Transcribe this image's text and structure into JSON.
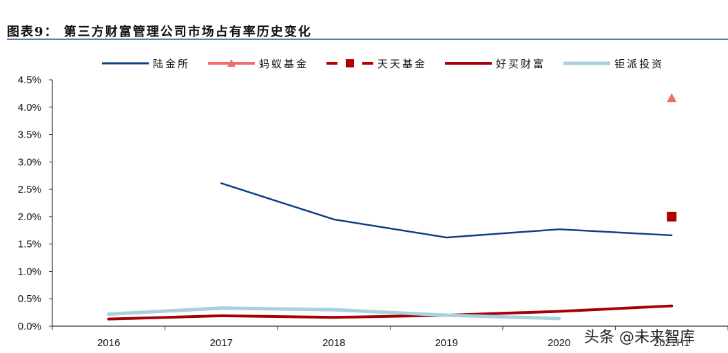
{
  "header": {
    "title": "图表9：  第三方财富管理公司市场占有率历史变化"
  },
  "legend": [
    {
      "label": "陆金所",
      "color": "#0e3f7f",
      "style": "line"
    },
    {
      "label": "蚂蚁基金",
      "color": "#f26c6c",
      "style": "line-triangle"
    },
    {
      "label": "天天基金",
      "color": "#b50000",
      "style": "dash-square"
    },
    {
      "label": "好买财富",
      "color": "#a50006",
      "style": "line"
    },
    {
      "label": "钜派投资",
      "color": "#a9d0de",
      "style": "line"
    }
  ],
  "watermark": "头条 @未来智库",
  "chart_data": {
    "type": "line",
    "title": "第三方财富管理公司市场占有率历史变化",
    "xlabel": "",
    "ylabel": "",
    "categories": [
      "2016",
      "2017",
      "2018",
      "2019",
      "2020",
      "2021H1"
    ],
    "y_ticks": [
      "0.0%",
      "0.5%",
      "1.0%",
      "1.5%",
      "2.0%",
      "2.5%",
      "3.0%",
      "3.5%",
      "4.0%",
      "4.5%"
    ],
    "ylim": [
      0,
      4.5
    ],
    "grid": false,
    "legend_position": "top",
    "series": [
      {
        "name": "陆金所",
        "values": [
          null,
          2.61,
          1.95,
          1.62,
          1.77,
          1.66
        ],
        "color": "#0e3f7f",
        "marker": "none"
      },
      {
        "name": "蚂蚁基金",
        "values": [
          null,
          null,
          null,
          null,
          null,
          4.17
        ],
        "color": "#f26c6c",
        "marker": "triangle"
      },
      {
        "name": "天天基金",
        "values": [
          null,
          null,
          null,
          null,
          null,
          2.0
        ],
        "color": "#b50000",
        "marker": "square"
      },
      {
        "name": "好买财富",
        "values": [
          0.13,
          0.19,
          0.16,
          0.2,
          0.27,
          0.37
        ],
        "color": "#a50006",
        "marker": "none"
      },
      {
        "name": "钜派投资",
        "values": [
          0.22,
          0.33,
          0.3,
          0.2,
          0.14,
          null
        ],
        "color": "#a9d0de",
        "marker": "none"
      }
    ]
  }
}
